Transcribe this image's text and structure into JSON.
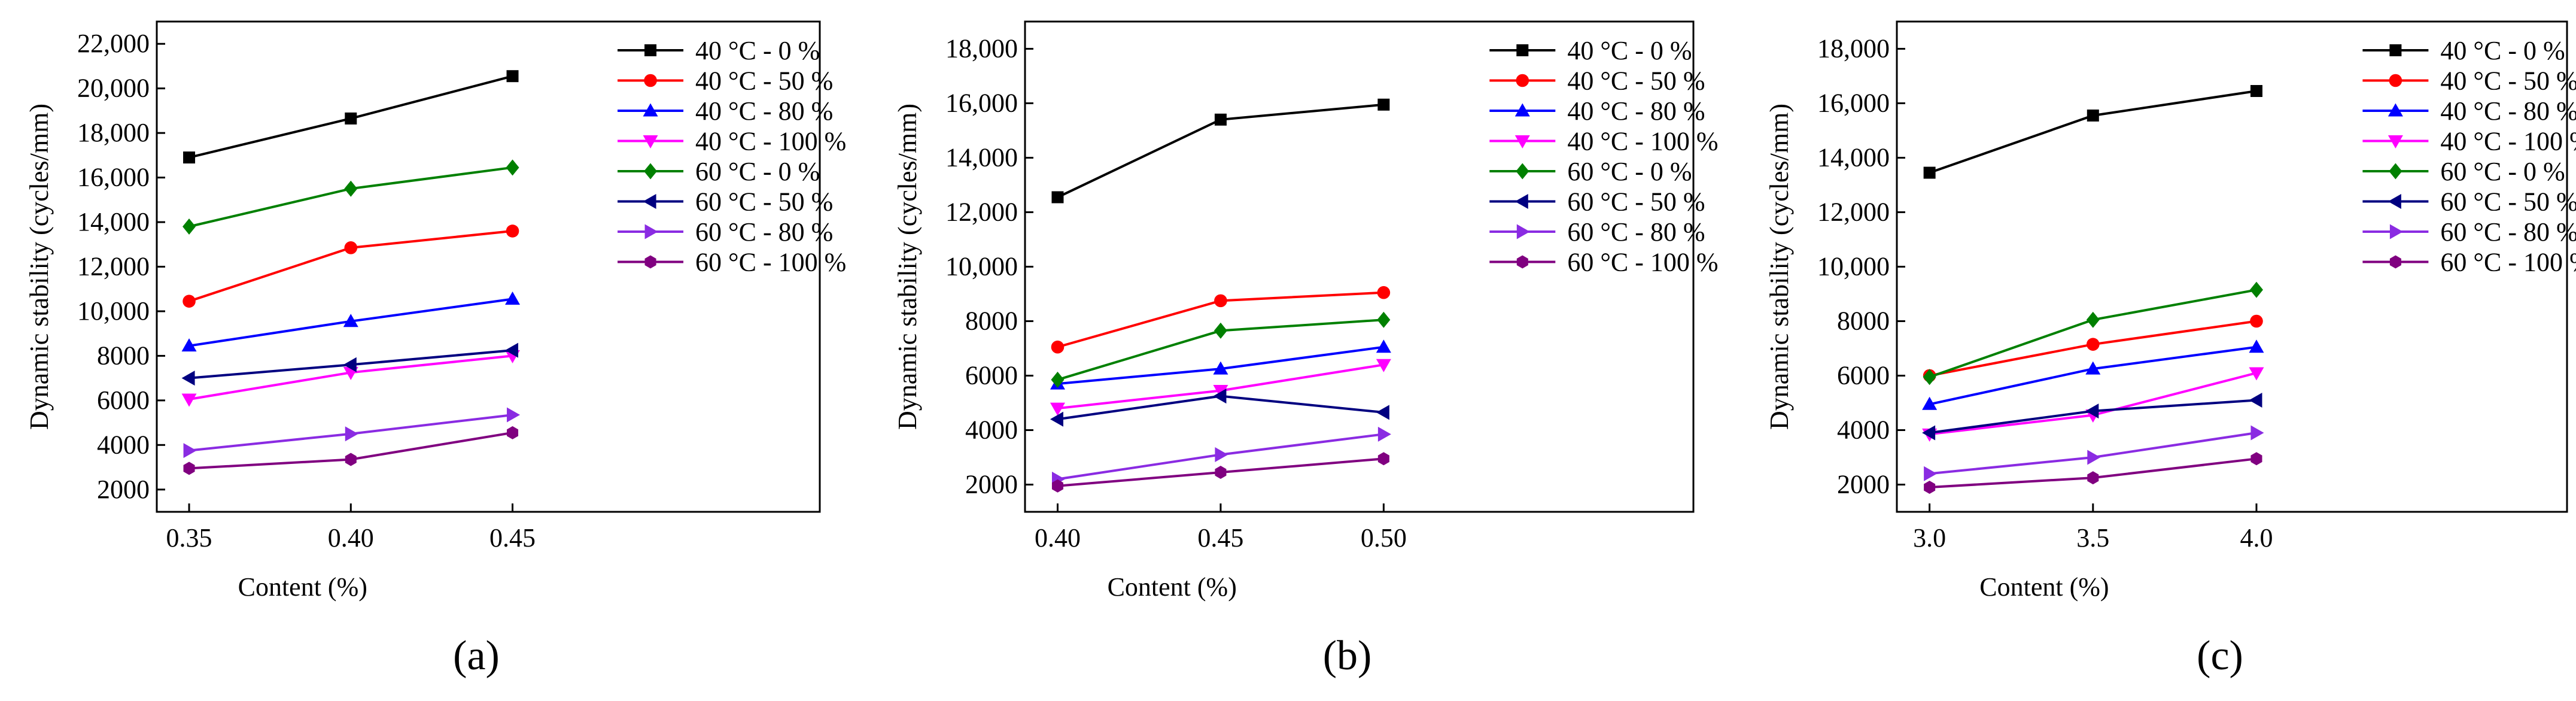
{
  "figure": {
    "panel_captions": [
      "(a)",
      "(b)",
      "(c)"
    ]
  },
  "chart_data": [
    {
      "type": "line",
      "caption": "(a)",
      "xlabel": "Content (%)",
      "ylabel": "Dynamic stability (cycles/mm)",
      "x": [
        0.35,
        0.4,
        0.45
      ],
      "x_tick_labels": [
        "0.35",
        "0.40",
        "0.45"
      ],
      "xlim": [
        0.34,
        0.545
      ],
      "ylim": [
        1000,
        23000
      ],
      "y_ticks": [
        2000,
        4000,
        6000,
        8000,
        10000,
        12000,
        14000,
        16000,
        18000,
        20000,
        22000
      ],
      "y_tick_labels": [
        "2000",
        "4000",
        "6000",
        "8000",
        "10,000",
        "12,000",
        "14,000",
        "16,000",
        "18,000",
        "20,000",
        "22,000"
      ],
      "legend_position": "top-right",
      "series": [
        {
          "name": "40 °C - 0 %",
          "color": "#000000",
          "marker": "square",
          "values": [
            16900,
            18650,
            20550
          ]
        },
        {
          "name": "40 °C - 50 %",
          "color": "#ff0000",
          "marker": "circle",
          "values": [
            10450,
            12850,
            13600
          ]
        },
        {
          "name": "40 °C - 80 %",
          "color": "#0000ff",
          "marker": "triangle-up",
          "values": [
            8450,
            9550,
            10550
          ]
        },
        {
          "name": "40 °C - 100 %",
          "color": "#ff00ff",
          "marker": "triangle-down",
          "values": [
            6050,
            7250,
            8000
          ]
        },
        {
          "name": "60 °C - 0 %",
          "color": "#008000",
          "marker": "diamond",
          "values": [
            13800,
            15500,
            16450
          ]
        },
        {
          "name": "60 °C - 50 %",
          "color": "#000080",
          "marker": "triangle-left",
          "values": [
            7000,
            7600,
            8250
          ]
        },
        {
          "name": "60 °C - 80 %",
          "color": "#8a2be2",
          "marker": "triangle-right",
          "values": [
            3750,
            4500,
            5350
          ]
        },
        {
          "name": "60 °C - 100 %",
          "color": "#800080",
          "marker": "hexagon",
          "values": [
            2950,
            3350,
            4550
          ]
        }
      ]
    },
    {
      "type": "line",
      "caption": "(b)",
      "xlabel": "Content (%)",
      "ylabel": "Dynamic stability (cycles/mm)",
      "x": [
        0.4,
        0.45,
        0.5
      ],
      "x_tick_labels": [
        "0.40",
        "0.45",
        "0.50"
      ],
      "xlim": [
        0.39,
        0.595
      ],
      "ylim": [
        1000,
        19000
      ],
      "y_ticks": [
        2000,
        4000,
        6000,
        8000,
        10000,
        12000,
        14000,
        16000,
        18000
      ],
      "y_tick_labels": [
        "2000",
        "4000",
        "6000",
        "8000",
        "10,000",
        "12,000",
        "14,000",
        "16,000",
        "18,000"
      ],
      "legend_position": "top-right",
      "series": [
        {
          "name": "40 °C - 0 %",
          "color": "#000000",
          "marker": "square",
          "values": [
            12550,
            15400,
            15950
          ]
        },
        {
          "name": "40 °C - 50 %",
          "color": "#ff0000",
          "marker": "circle",
          "values": [
            7050,
            8750,
            9050
          ]
        },
        {
          "name": "40 °C - 80 %",
          "color": "#0000ff",
          "marker": "triangle-up",
          "values": [
            5700,
            6250,
            7050
          ]
        },
        {
          "name": "40 °C - 100 %",
          "color": "#ff00ff",
          "marker": "triangle-down",
          "values": [
            4800,
            5450,
            6400
          ]
        },
        {
          "name": "60 °C - 0 %",
          "color": "#008000",
          "marker": "diamond",
          "values": [
            5850,
            7650,
            8050
          ]
        },
        {
          "name": "60 °C - 50 %",
          "color": "#000080",
          "marker": "triangle-left",
          "values": [
            4400,
            5250,
            4650
          ]
        },
        {
          "name": "60 °C - 80 %",
          "color": "#8a2be2",
          "marker": "triangle-right",
          "values": [
            2200,
            3100,
            3850
          ]
        },
        {
          "name": "60 °C - 100 %",
          "color": "#800080",
          "marker": "hexagon",
          "values": [
            1950,
            2450,
            2950
          ]
        }
      ]
    },
    {
      "type": "line",
      "caption": "(c)",
      "xlabel": "Content (%)",
      "ylabel": "Dynamic stability (cycles/mm)",
      "x": [
        3.0,
        3.5,
        4.0
      ],
      "x_tick_labels": [
        "3.0",
        "3.5",
        "4.0"
      ],
      "xlim": [
        2.9,
        4.95
      ],
      "ylim": [
        1000,
        19000
      ],
      "y_ticks": [
        2000,
        4000,
        6000,
        8000,
        10000,
        12000,
        14000,
        16000,
        18000
      ],
      "y_tick_labels": [
        "2000",
        "4000",
        "6000",
        "8000",
        "10,000",
        "12,000",
        "14,000",
        "16,000",
        "18,000"
      ],
      "legend_position": "top-right",
      "series": [
        {
          "name": "40 °C - 0 %",
          "color": "#000000",
          "marker": "square",
          "values": [
            13450,
            15550,
            16450
          ]
        },
        {
          "name": "40 °C - 50 %",
          "color": "#ff0000",
          "marker": "circle",
          "values": [
            6000,
            7150,
            8000
          ]
        },
        {
          "name": "40 °C - 80 %",
          "color": "#0000ff",
          "marker": "triangle-up",
          "values": [
            4950,
            6250,
            7050
          ]
        },
        {
          "name": "40 °C - 100 %",
          "color": "#ff00ff",
          "marker": "triangle-down",
          "values": [
            3850,
            4550,
            6100
          ]
        },
        {
          "name": "60 °C - 0 %",
          "color": "#008000",
          "marker": "diamond",
          "values": [
            5950,
            8050,
            9150
          ]
        },
        {
          "name": "60 °C - 50 %",
          "color": "#000080",
          "marker": "triangle-left",
          "values": [
            3900,
            4700,
            5100
          ]
        },
        {
          "name": "60 °C - 80 %",
          "color": "#8a2be2",
          "marker": "triangle-right",
          "values": [
            2400,
            3000,
            3900
          ]
        },
        {
          "name": "60 °C - 100 %",
          "color": "#800080",
          "marker": "hexagon",
          "values": [
            1900,
            2250,
            2950
          ]
        }
      ]
    }
  ]
}
